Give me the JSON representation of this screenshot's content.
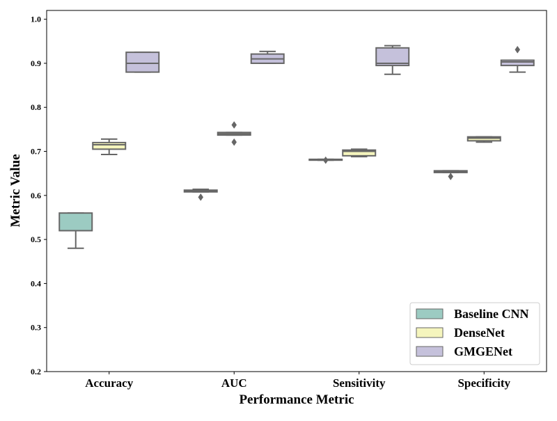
{
  "chart_data": {
    "type": "boxplot",
    "xlabel": "Performance Metric",
    "ylabel": "Metric Value",
    "ylim": [
      0.2,
      1.02
    ],
    "yticks": [
      "0.2",
      "0.3",
      "0.4",
      "0.5",
      "0.6",
      "0.7",
      "0.8",
      "0.9",
      "1.0"
    ],
    "categories": [
      "Accuracy",
      "AUC",
      "Sensitivity",
      "Specificity"
    ],
    "legend_position": "bottom-right",
    "series": [
      {
        "name": "Baseline CNN",
        "color": "#9ccbc2",
        "boxes": [
          {
            "whislo": 0.48,
            "q1": 0.52,
            "med": 0.52,
            "q3": 0.56,
            "whishi": 0.56,
            "fliers": []
          },
          {
            "whislo": 0.608,
            "q1": 0.608,
            "med": 0.61,
            "q3": 0.612,
            "whishi": 0.614,
            "fliers": [
              0.596
            ]
          },
          {
            "whislo": 0.68,
            "q1": 0.68,
            "med": 0.681,
            "q3": 0.682,
            "whishi": 0.682,
            "fliers": [
              0.68
            ]
          },
          {
            "whislo": 0.652,
            "q1": 0.652,
            "med": 0.654,
            "q3": 0.656,
            "whishi": 0.656,
            "fliers": [
              0.643
            ]
          }
        ]
      },
      {
        "name": "DenseNet",
        "color": "#f5f5bd",
        "boxes": [
          {
            "whislo": 0.693,
            "q1": 0.705,
            "med": 0.715,
            "q3": 0.72,
            "whishi": 0.728,
            "fliers": []
          },
          {
            "whislo": 0.737,
            "q1": 0.737,
            "med": 0.74,
            "q3": 0.743,
            "whishi": 0.743,
            "fliers": [
              0.76,
              0.721
            ]
          },
          {
            "whislo": 0.688,
            "q1": 0.69,
            "med": 0.7,
            "q3": 0.703,
            "whishi": 0.705,
            "fliers": []
          },
          {
            "whislo": 0.721,
            "q1": 0.724,
            "med": 0.73,
            "q3": 0.733,
            "whishi": 0.733,
            "fliers": []
          }
        ]
      },
      {
        "name": "GMGENet",
        "color": "#c5c1db",
        "boxes": [
          {
            "whislo": 0.88,
            "q1": 0.88,
            "med": 0.9,
            "q3": 0.925,
            "whishi": 0.925,
            "fliers": []
          },
          {
            "whislo": 0.9,
            "q1": 0.9,
            "med": 0.91,
            "q3": 0.921,
            "whishi": 0.927,
            "fliers": []
          },
          {
            "whislo": 0.875,
            "q1": 0.895,
            "med": 0.9,
            "q3": 0.935,
            "whishi": 0.94,
            "fliers": []
          },
          {
            "whislo": 0.88,
            "q1": 0.895,
            "med": 0.903,
            "q3": 0.907,
            "whishi": 0.907,
            "fliers": [
              0.931
            ]
          }
        ]
      }
    ]
  }
}
